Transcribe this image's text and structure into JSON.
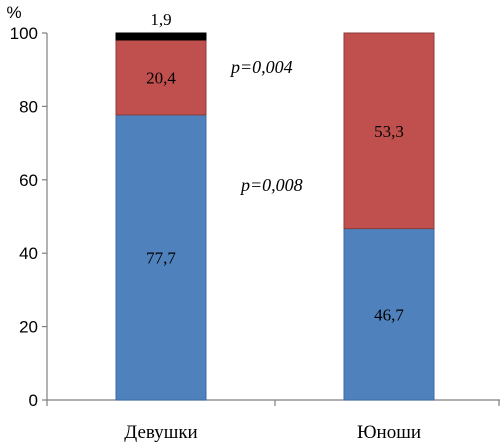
{
  "chart_data": {
    "type": "bar",
    "stacked": true,
    "unit": "%",
    "categories": [
      "Девушки",
      "Юноши"
    ],
    "series": [
      {
        "values": [
          77.7,
          46.7
        ],
        "labels": [
          "77,7",
          "46,7"
        ],
        "color": "#4F81BD",
        "border": "#3A6BA8"
      },
      {
        "values": [
          20.4,
          53.3
        ],
        "labels": [
          "20,4",
          "53,3"
        ],
        "color": "#C0504D",
        "border": "#8E3B39"
      },
      {
        "values": [
          1.9,
          0
        ],
        "labels": [
          "1,9",
          ""
        ],
        "color": "#000000",
        "border": "#000000"
      }
    ],
    "ylim": [
      0,
      100
    ],
    "yticks": [
      "0",
      "20",
      "40",
      "60",
      "80",
      "100"
    ],
    "annotations": [
      "p=0,004",
      "p=0,008"
    ],
    "grid": false,
    "legend": "none"
  }
}
